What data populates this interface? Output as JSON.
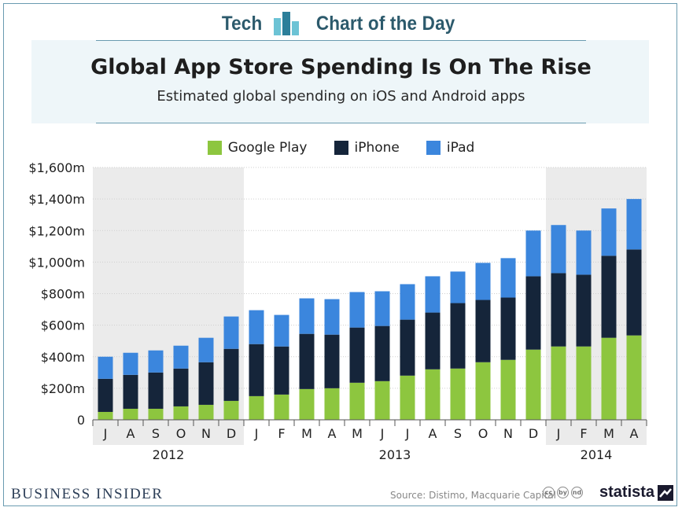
{
  "header": {
    "brand_left": "Tech",
    "brand_right": "Chart of the Day",
    "brand_logo_icon": "bar-chart-logo-icon",
    "title": "Global App Store Spending Is On The Rise",
    "subtitle": "Estimated global spending on iOS and Android apps"
  },
  "colors": {
    "google_play": "#8dc63f",
    "iphone": "#15253a",
    "ipad": "#3b86dd",
    "accent": "#2c5a6c",
    "shade": "#ebebeb"
  },
  "legend": [
    {
      "label": "Google Play"
    },
    {
      "label": "iPhone"
    },
    {
      "label": "iPad"
    }
  ],
  "chart_data": {
    "type": "bar",
    "stacked": true,
    "title": "Global App Store Spending Is On The Rise",
    "subtitle": "Estimated global spending on iOS and Android apps",
    "xlabel": "",
    "ylabel": "",
    "ylim": [
      0,
      1600
    ],
    "yticks": [
      0,
      200,
      400,
      600,
      800,
      1000,
      1200,
      1400,
      1600
    ],
    "ytick_labels": [
      "0",
      "$200m",
      "$400m",
      "$600m",
      "$800m",
      "$1,000m",
      "$1,200m",
      "$1,400m",
      "$1,600m"
    ],
    "grid": true,
    "legend_position": "top-center",
    "categories": [
      "J",
      "A",
      "S",
      "O",
      "N",
      "D",
      "J",
      "F",
      "M",
      "A",
      "M",
      "J",
      "J",
      "A",
      "S",
      "O",
      "N",
      "D",
      "J",
      "F",
      "M",
      "A"
    ],
    "year_groups": [
      {
        "label": "2012",
        "start": 0,
        "end": 5,
        "shaded": true
      },
      {
        "label": "2013",
        "start": 6,
        "end": 17,
        "shaded": false
      },
      {
        "label": "2014",
        "start": 18,
        "end": 21,
        "shaded": true
      }
    ],
    "series": [
      {
        "name": "Google Play",
        "values": [
          50,
          70,
          70,
          85,
          95,
          120,
          150,
          160,
          195,
          200,
          235,
          245,
          280,
          320,
          325,
          365,
          380,
          445,
          465,
          465,
          520,
          535
        ]
      },
      {
        "name": "iPhone",
        "values": [
          210,
          215,
          230,
          240,
          270,
          330,
          330,
          305,
          350,
          340,
          350,
          350,
          355,
          360,
          415,
          395,
          395,
          465,
          465,
          455,
          520,
          545
        ]
      },
      {
        "name": "iPad",
        "values": [
          140,
          140,
          140,
          145,
          155,
          205,
          215,
          200,
          225,
          225,
          225,
          220,
          225,
          230,
          200,
          235,
          250,
          290,
          305,
          280,
          300,
          320
        ]
      }
    ]
  },
  "footer": {
    "brand": "BUSINESS INSIDER",
    "source": "Source: Distimo, Macquarie Capital",
    "cc_icons": [
      "cc",
      "by",
      "nd"
    ],
    "statista": "statista"
  }
}
